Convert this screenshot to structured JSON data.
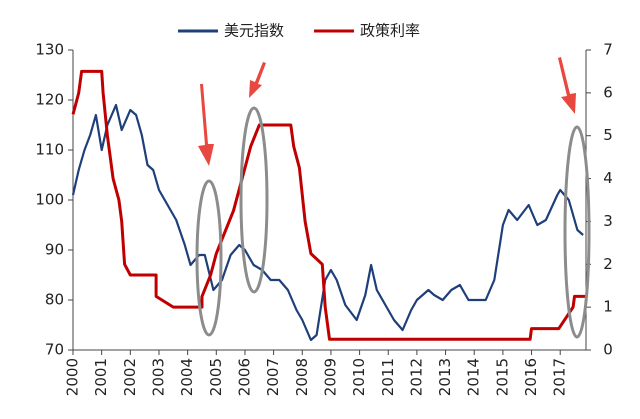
{
  "chart_data": {
    "type": "line",
    "xlim": [
      2000,
      2017.9
    ],
    "xticks": [
      2000,
      2001,
      2002,
      2003,
      2004,
      2005,
      2006,
      2007,
      2008,
      2009,
      2010,
      2011,
      2012,
      2013,
      2014,
      2015,
      2016,
      2017
    ],
    "ylim": [
      70,
      130
    ],
    "yticks": [
      70,
      80,
      90,
      100,
      110,
      120,
      130
    ],
    "y2lim": [
      0,
      7
    ],
    "y2ticks": [
      0,
      1,
      2,
      3,
      4,
      5,
      6,
      7
    ],
    "series": [
      {
        "name": "美元指数",
        "color": "#1f3f7a",
        "x": [
          2000.0,
          2000.2,
          2000.4,
          2000.6,
          2000.8,
          2001.0,
          2001.2,
          2001.5,
          2001.7,
          2002.0,
          2002.2,
          2002.4,
          2002.6,
          2002.8,
          2003.0,
          2003.3,
          2003.6,
          2003.9,
          2004.1,
          2004.4,
          2004.6,
          2004.9,
          2005.2,
          2005.5,
          2005.8,
          2006.0,
          2006.3,
          2006.6,
          2006.9,
          2007.2,
          2007.5,
          2007.8,
          2008.0,
          2008.3,
          2008.5,
          2008.8,
          2009.0,
          2009.2,
          2009.5,
          2009.9,
          2010.2,
          2010.4,
          2010.6,
          2010.9,
          2011.2,
          2011.5,
          2011.8,
          2012.0,
          2012.4,
          2012.6,
          2012.9,
          2013.2,
          2013.5,
          2013.8,
          2014.0,
          2014.4,
          2014.7,
          2015.0,
          2015.2,
          2015.5,
          2015.9,
          2016.2,
          2016.5,
          2016.9,
          2017.0,
          2017.3,
          2017.6,
          2017.8
        ],
        "values": [
          101,
          106,
          110,
          113,
          117,
          110,
          115,
          119,
          114,
          118,
          117,
          113,
          107,
          106,
          102,
          99,
          96,
          91,
          87,
          89,
          89,
          82,
          84,
          89,
          91,
          90,
          87,
          86,
          84,
          84,
          82,
          78,
          76,
          72,
          73,
          84,
          86,
          84,
          79,
          76,
          81,
          87,
          82,
          79,
          76,
          74,
          78,
          80,
          82,
          81,
          80,
          82,
          83,
          80,
          80,
          80,
          84,
          95,
          98,
          96,
          99,
          95,
          96,
          101,
          102,
          100,
          94,
          93
        ]
      },
      {
        "name": "政策利率",
        "color": "#c00000",
        "axis": "y2",
        "x": [
          2000.0,
          2000.1,
          2000.2,
          2000.3,
          2001.0,
          2001.05,
          2001.2,
          2001.4,
          2001.6,
          2001.7,
          2001.8,
          2002.0,
          2002.9,
          2002.9,
          2003.5,
          2004.5,
          2004.5,
          2004.8,
          2005.0,
          2005.3,
          2005.6,
          2005.9,
          2006.2,
          2006.5,
          2007.6,
          2007.7,
          2007.9,
          2008.1,
          2008.3,
          2008.7,
          2008.8,
          2008.95,
          2015.95,
          2016.0,
          2016.95,
          2017.2,
          2017.45,
          2017.5,
          2017.9
        ],
        "values": [
          5.5,
          5.75,
          6,
          6.5,
          6.5,
          6,
          5,
          4,
          3.5,
          3,
          2,
          1.75,
          1.75,
          1.25,
          1.0,
          1.0,
          1.25,
          1.75,
          2.25,
          2.75,
          3.25,
          4.0,
          4.75,
          5.25,
          5.25,
          4.75,
          4.25,
          3.0,
          2.25,
          2.0,
          1.0,
          0.25,
          0.25,
          0.5,
          0.5,
          0.75,
          1.0,
          1.25,
          1.25
        ]
      }
    ]
  }
}
